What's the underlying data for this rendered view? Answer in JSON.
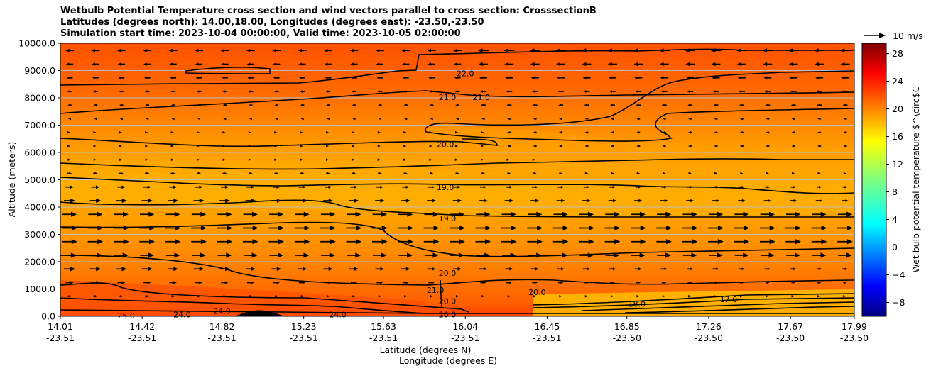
{
  "title": {
    "line1": "Wetbulb Potential Temperature cross section and wind vectors parallel to cross section: CrosssectionB",
    "line2": "Latitudes (degrees north): 14.00,18.00, Longitudes (degrees east): -23.50,-23.50",
    "line3": "Simulation start time: 2023-10-04 00:00:00, Valid time: 2023-10-05 02:00:00"
  },
  "chart_data": {
    "type": "contour",
    "ylabel": "Altitude (meters)",
    "xlabel_lat": "Latitude (degrees N)",
    "xlabel_lon": "Longitude (degrees E)",
    "ylim": [
      0,
      10000
    ],
    "yticks": [
      "0.0",
      "1000.0",
      "2000.0",
      "3000.0",
      "4000.0",
      "5000.0",
      "6000.0",
      "7000.0",
      "8000.0",
      "9000.0",
      "10000.0"
    ],
    "xticks": [
      {
        "lat": "14.01",
        "lon": "-23.51"
      },
      {
        "lat": "14.42",
        "lon": "-23.51"
      },
      {
        "lat": "14.82",
        "lon": "-23.51"
      },
      {
        "lat": "15.23",
        "lon": "-23.51"
      },
      {
        "lat": "15.63",
        "lon": "-23.51"
      },
      {
        "lat": "16.04",
        "lon": "-23.51"
      },
      {
        "lat": "16.45",
        "lon": "-23.51"
      },
      {
        "lat": "16.85",
        "lon": "-23.50"
      },
      {
        "lat": "17.26",
        "lon": "-23.50"
      },
      {
        "lat": "17.67",
        "lon": "-23.50"
      },
      {
        "lat": "17.99",
        "lon": "-23.50"
      }
    ],
    "grid": "horizontal",
    "colorbar": {
      "label": "Wet bulb potential temperature $^\\circ$C",
      "ticks": [
        "28",
        "24",
        "20",
        "16",
        "12",
        "8",
        "4",
        "0",
        "−4",
        "−8"
      ],
      "range": [
        -10,
        29.5
      ],
      "colormap": "jet"
    },
    "quiver_key": "10 m/s",
    "contour_labels": [
      {
        "text": "22.0",
        "lat": 16.04,
        "alt": 8900
      },
      {
        "text": "21.0",
        "lat": 15.95,
        "alt": 8020
      },
      {
        "text": "21.0",
        "lat": 16.12,
        "alt": 8020
      },
      {
        "text": "20.0",
        "lat": 15.94,
        "alt": 6300
      },
      {
        "text": "19.0",
        "lat": 15.94,
        "alt": 4730
      },
      {
        "text": "19.0",
        "lat": 15.95,
        "alt": 3580
      },
      {
        "text": "20.0",
        "lat": 15.95,
        "alt": 1580
      },
      {
        "text": "20.0",
        "lat": 16.4,
        "alt": 880
      },
      {
        "text": "21.0",
        "lat": 15.89,
        "alt": 960
      },
      {
        "text": "20.0",
        "lat": 15.95,
        "alt": 560
      },
      {
        "text": "20.0",
        "lat": 15.95,
        "alt": 70
      },
      {
        "text": "24.0",
        "lat": 14.62,
        "alt": 70
      },
      {
        "text": "24.0",
        "lat": 14.82,
        "alt": 200
      },
      {
        "text": "24.0",
        "lat": 15.4,
        "alt": 70
      },
      {
        "text": "25.0",
        "lat": 14.34,
        "alt": 20
      },
      {
        "text": "18.0",
        "lat": 16.9,
        "alt": 450
      },
      {
        "text": "17.0",
        "lat": 17.36,
        "alt": 620
      }
    ]
  }
}
